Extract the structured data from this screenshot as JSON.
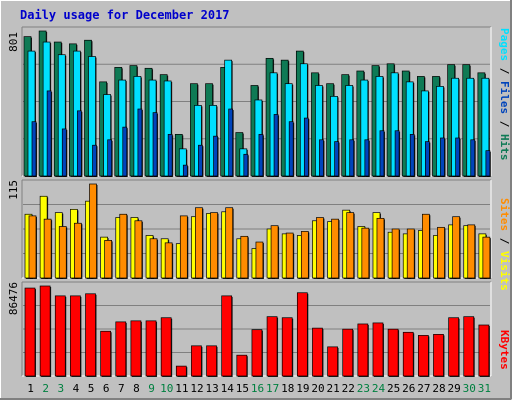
{
  "title": "Daily usage for December 2017",
  "colors": {
    "hits": "#0f7a55",
    "files": "#00e0ff",
    "pages": "#0044bb",
    "visits": "#ffff00",
    "sites": "#ff8c00",
    "kbytes": "#ff0000",
    "title": "#0000cc",
    "panel": "#c0c0c0",
    "weekend": "#008040",
    "weekday": "#000000"
  },
  "panels": {
    "top": {
      "max_label": "801",
      "side_labels": [
        "Pages",
        "Files",
        "Hits"
      ],
      "separator": " / "
    },
    "middle": {
      "max_label": "115",
      "side_labels": [
        "Sites",
        "Visits"
      ],
      "separator": " / "
    },
    "bottom": {
      "max_label": "86476",
      "side_labels": [
        "KBytes"
      ],
      "separator": ""
    }
  },
  "chart_data": [
    {
      "type": "bar",
      "title": "Daily usage for December 2017",
      "categories": [
        "1",
        "2",
        "3",
        "4",
        "5",
        "6",
        "7",
        "8",
        "9",
        "10",
        "11",
        "12",
        "13",
        "14",
        "15",
        "16",
        "17",
        "18",
        "19",
        "20",
        "21",
        "22",
        "23",
        "24",
        "25",
        "26",
        "27",
        "28",
        "29",
        "30",
        "31"
      ],
      "ylim": [
        0,
        801
      ],
      "series": [
        {
          "name": "Hits",
          "values": [
            770,
            801,
            740,
            730,
            750,
            520,
            600,
            610,
            595,
            560,
            230,
            510,
            510,
            600,
            240,
            500,
            650,
            640,
            690,
            570,
            510,
            560,
            580,
            610,
            620,
            580,
            550,
            550,
            615,
            615,
            570
          ]
        },
        {
          "name": "Files",
          "values": [
            690,
            740,
            670,
            690,
            660,
            450,
            530,
            550,
            530,
            525,
            150,
            390,
            390,
            640,
            150,
            420,
            570,
            510,
            620,
            500,
            440,
            500,
            530,
            550,
            570,
            520,
            470,
            495,
            540,
            540,
            540
          ]
        },
        {
          "name": "Pages",
          "values": [
            300,
            470,
            260,
            360,
            170,
            200,
            270,
            370,
            350,
            230,
            60,
            170,
            220,
            370,
            120,
            230,
            340,
            300,
            320,
            200,
            190,
            200,
            200,
            250,
            250,
            230,
            190,
            210,
            210,
            200,
            140
          ]
        }
      ]
    },
    {
      "type": "bar",
      "categories": [
        "1",
        "2",
        "3",
        "4",
        "5",
        "6",
        "7",
        "8",
        "9",
        "10",
        "11",
        "12",
        "13",
        "14",
        "15",
        "16",
        "17",
        "18",
        "19",
        "20",
        "21",
        "22",
        "23",
        "24",
        "25",
        "26",
        "27",
        "28",
        "29",
        "30",
        "31"
      ],
      "ylim": [
        0,
        115
      ],
      "series": [
        {
          "name": "Visits",
          "values": [
            78,
            100,
            80,
            84,
            94,
            50,
            74,
            74,
            52,
            48,
            42,
            75,
            79,
            81,
            48,
            36,
            60,
            54,
            52,
            70,
            69,
            83,
            63,
            80,
            56,
            54,
            58,
            52,
            65,
            64,
            54
          ]
        },
        {
          "name": "Sites",
          "values": [
            76,
            72,
            63,
            67,
            115,
            46,
            78,
            70,
            48,
            43,
            76,
            86,
            80,
            86,
            51,
            44,
            64,
            55,
            57,
            74,
            72,
            80,
            61,
            73,
            60,
            60,
            78,
            62,
            75,
            65,
            50
          ]
        }
      ]
    },
    {
      "type": "bar",
      "categories": [
        "1",
        "2",
        "3",
        "4",
        "5",
        "6",
        "7",
        "8",
        "9",
        "10",
        "11",
        "12",
        "13",
        "14",
        "15",
        "16",
        "17",
        "18",
        "19",
        "20",
        "21",
        "22",
        "23",
        "24",
        "25",
        "26",
        "27",
        "28",
        "29",
        "30",
        "31"
      ],
      "ylim": [
        0,
        86476
      ],
      "series": [
        {
          "name": "KBytes",
          "values": [
            84500,
            86476,
            77000,
            77000,
            79000,
            43000,
            52000,
            53000,
            53000,
            56000,
            9500,
            29000,
            29000,
            77000,
            20000,
            44500,
            57000,
            56000,
            80000,
            46000,
            28000,
            45000,
            50000,
            51000,
            45000,
            42000,
            39000,
            40000,
            56000,
            57000,
            49000
          ]
        }
      ]
    }
  ]
}
